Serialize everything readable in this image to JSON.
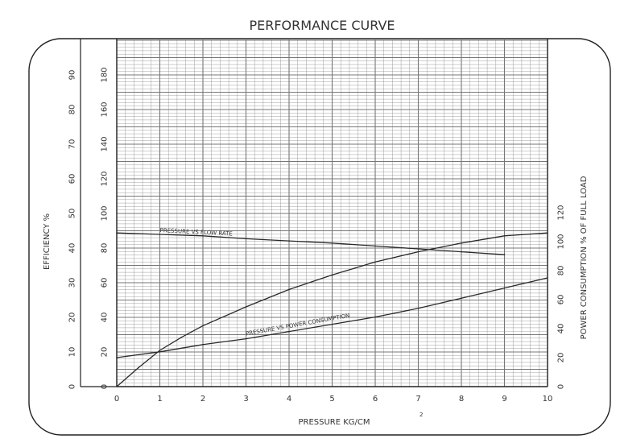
{
  "chart_data": {
    "type": "line",
    "title": "PERFORMANCE CURVE",
    "xlabel": "PRESSURE KG/CM",
    "xlabel_superscript": "2",
    "ylabel_left": "EFFICIENCY %",
    "ylabel_right": "POWER CONSUMPTION % OF FULL LOAD",
    "xlim": [
      0,
      10
    ],
    "x_ticks": [
      "0",
      "1",
      "2",
      "3",
      "4",
      "5",
      "6",
      "7",
      "8",
      "9",
      "10"
    ],
    "efficiency_axis": {
      "range": [
        0,
        90
      ],
      "ticks": [
        "0",
        "10",
        "20",
        "30",
        "40",
        "50",
        "60",
        "70",
        "80",
        "90"
      ]
    },
    "inner_left_axis": {
      "range": [
        0,
        180
      ],
      "ticks": [
        "0",
        "20",
        "40",
        "60",
        "80",
        "100",
        "120",
        "140",
        "160",
        "180"
      ]
    },
    "right_axis": {
      "range": [
        0,
        120
      ],
      "ticks": [
        "0",
        "20",
        "40",
        "60",
        "80",
        "100",
        "120"
      ]
    },
    "grid": true,
    "series": [
      {
        "name": "",
        "axis": "right",
        "x": [
          0,
          0.5,
          1,
          1.5,
          2,
          3,
          4,
          5,
          6,
          7,
          8,
          9,
          10
        ],
        "values": [
          0,
          13,
          25,
          34,
          42,
          55,
          67,
          77,
          86,
          93,
          99,
          104,
          106
        ]
      },
      {
        "name": "PRESSURE VS FLOW RATE",
        "axis": "right",
        "x": [
          0,
          1,
          2,
          3,
          4,
          5,
          6,
          7,
          8,
          9
        ],
        "values": [
          106,
          105,
          104,
          102,
          100.5,
          99,
          97,
          95,
          93,
          91
        ]
      },
      {
        "name": "PRESSURE VS POWER CONSUMPTION",
        "axis": "right",
        "x": [
          0,
          1,
          2,
          3,
          4,
          5,
          6,
          7,
          8,
          9,
          10
        ],
        "values": [
          20,
          24,
          29,
          33,
          38,
          43,
          48,
          54,
          61,
          68,
          75
        ]
      }
    ]
  }
}
